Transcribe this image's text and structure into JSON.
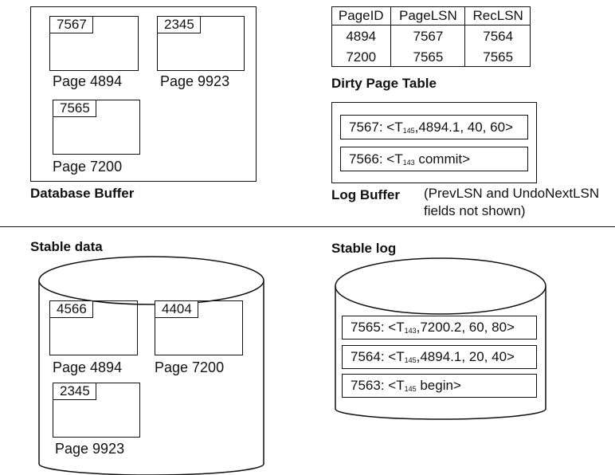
{
  "database_buffer": {
    "label": "Database Buffer",
    "pages": [
      {
        "lsn": "7567",
        "name": "Page 4894"
      },
      {
        "lsn": "2345",
        "name": "Page 9923"
      },
      {
        "lsn": "7565",
        "name": "Page 7200"
      }
    ]
  },
  "dirty_page_table": {
    "label": "Dirty Page Table",
    "columns": [
      "PageID",
      "PageLSN",
      "RecLSN"
    ],
    "rows": [
      [
        "4894",
        "7567",
        "7564"
      ],
      [
        "7200",
        "7565",
        "7565"
      ]
    ]
  },
  "log_buffer": {
    "label": "Log Buffer",
    "note_line1": "(PrevLSN and UndoNextLSN",
    "note_line2": "fields not shown)",
    "records": [
      {
        "prefix": "7567: <T",
        "sub": "145",
        "suffix": ",4894.1, 40, 60>"
      },
      {
        "prefix": "7566: <T",
        "sub": "143",
        "suffix": " commit>"
      }
    ]
  },
  "stable_data": {
    "label": "Stable data",
    "pages": [
      {
        "lsn": "4566",
        "name": "Page 4894"
      },
      {
        "lsn": "4404",
        "name": "Page 7200"
      },
      {
        "lsn": "2345",
        "name": "Page 9923"
      }
    ]
  },
  "stable_log": {
    "label": "Stable log",
    "records": [
      {
        "prefix": "7565: <T",
        "sub": "143",
        "suffix": ",7200.2, 60, 80>"
      },
      {
        "prefix": "7564: <T",
        "sub": "145",
        "suffix": ",4894.1, 20, 40>"
      },
      {
        "prefix": "7563: <T",
        "sub": "145",
        "suffix": " begin>"
      }
    ]
  }
}
